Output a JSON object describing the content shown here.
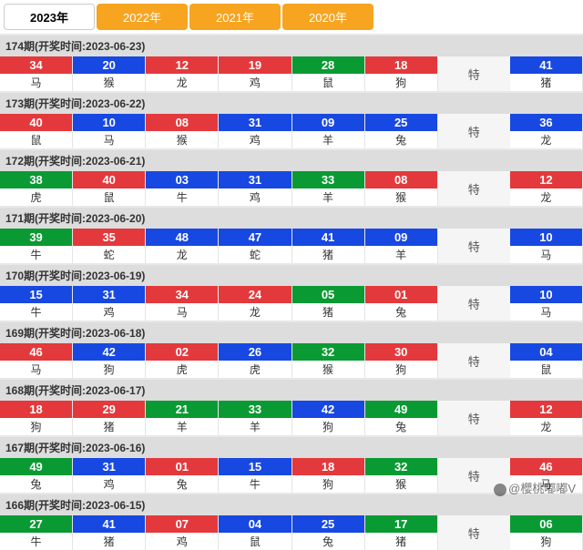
{
  "colors": {
    "red": "#e4393c",
    "blue": "#1848e2",
    "green": "#0a9a33"
  },
  "tabs": [
    {
      "label": "2023年",
      "active": true
    },
    {
      "label": "2022年",
      "active": false
    },
    {
      "label": "2021年",
      "active": false
    },
    {
      "label": "2020年",
      "active": false
    }
  ],
  "special_label": "特",
  "watermark": "@櫻桃嘟嘟V",
  "periods": [
    {
      "title": "174期(开奖时间:2023-06-23)",
      "balls": [
        {
          "n": "34",
          "z": "马",
          "c": "red"
        },
        {
          "n": "20",
          "z": "猴",
          "c": "blue"
        },
        {
          "n": "12",
          "z": "龙",
          "c": "red"
        },
        {
          "n": "19",
          "z": "鸡",
          "c": "red"
        },
        {
          "n": "28",
          "z": "鼠",
          "c": "green"
        },
        {
          "n": "18",
          "z": "狗",
          "c": "red"
        }
      ],
      "special": {
        "n": "41",
        "z": "猪",
        "c": "blue"
      }
    },
    {
      "title": "173期(开奖时间:2023-06-22)",
      "balls": [
        {
          "n": "40",
          "z": "鼠",
          "c": "red"
        },
        {
          "n": "10",
          "z": "马",
          "c": "blue"
        },
        {
          "n": "08",
          "z": "猴",
          "c": "red"
        },
        {
          "n": "31",
          "z": "鸡",
          "c": "blue"
        },
        {
          "n": "09",
          "z": "羊",
          "c": "blue"
        },
        {
          "n": "25",
          "z": "兔",
          "c": "blue"
        }
      ],
      "special": {
        "n": "36",
        "z": "龙",
        "c": "blue"
      }
    },
    {
      "title": "172期(开奖时间:2023-06-21)",
      "balls": [
        {
          "n": "38",
          "z": "虎",
          "c": "green"
        },
        {
          "n": "40",
          "z": "鼠",
          "c": "red"
        },
        {
          "n": "03",
          "z": "牛",
          "c": "blue"
        },
        {
          "n": "31",
          "z": "鸡",
          "c": "blue"
        },
        {
          "n": "33",
          "z": "羊",
          "c": "green"
        },
        {
          "n": "08",
          "z": "猴",
          "c": "red"
        }
      ],
      "special": {
        "n": "12",
        "z": "龙",
        "c": "red"
      }
    },
    {
      "title": "171期(开奖时间:2023-06-20)",
      "balls": [
        {
          "n": "39",
          "z": "牛",
          "c": "green"
        },
        {
          "n": "35",
          "z": "蛇",
          "c": "red"
        },
        {
          "n": "48",
          "z": "龙",
          "c": "blue"
        },
        {
          "n": "47",
          "z": "蛇",
          "c": "blue"
        },
        {
          "n": "41",
          "z": "猪",
          "c": "blue"
        },
        {
          "n": "09",
          "z": "羊",
          "c": "blue"
        }
      ],
      "special": {
        "n": "10",
        "z": "马",
        "c": "blue"
      }
    },
    {
      "title": "170期(开奖时间:2023-06-19)",
      "balls": [
        {
          "n": "15",
          "z": "牛",
          "c": "blue"
        },
        {
          "n": "31",
          "z": "鸡",
          "c": "blue"
        },
        {
          "n": "34",
          "z": "马",
          "c": "red"
        },
        {
          "n": "24",
          "z": "龙",
          "c": "red"
        },
        {
          "n": "05",
          "z": "猪",
          "c": "green"
        },
        {
          "n": "01",
          "z": "兔",
          "c": "red"
        }
      ],
      "special": {
        "n": "10",
        "z": "马",
        "c": "blue"
      }
    },
    {
      "title": "169期(开奖时间:2023-06-18)",
      "balls": [
        {
          "n": "46",
          "z": "马",
          "c": "red"
        },
        {
          "n": "42",
          "z": "狗",
          "c": "blue"
        },
        {
          "n": "02",
          "z": "虎",
          "c": "red"
        },
        {
          "n": "26",
          "z": "虎",
          "c": "blue"
        },
        {
          "n": "32",
          "z": "猴",
          "c": "green"
        },
        {
          "n": "30",
          "z": "狗",
          "c": "red"
        }
      ],
      "special": {
        "n": "04",
        "z": "鼠",
        "c": "blue"
      }
    },
    {
      "title": "168期(开奖时间:2023-06-17)",
      "balls": [
        {
          "n": "18",
          "z": "狗",
          "c": "red"
        },
        {
          "n": "29",
          "z": "猪",
          "c": "red"
        },
        {
          "n": "21",
          "z": "羊",
          "c": "green"
        },
        {
          "n": "33",
          "z": "羊",
          "c": "green"
        },
        {
          "n": "42",
          "z": "狗",
          "c": "blue"
        },
        {
          "n": "49",
          "z": "兔",
          "c": "green"
        }
      ],
      "special": {
        "n": "12",
        "z": "龙",
        "c": "red"
      }
    },
    {
      "title": "167期(开奖时间:2023-06-16)",
      "balls": [
        {
          "n": "49",
          "z": "兔",
          "c": "green"
        },
        {
          "n": "31",
          "z": "鸡",
          "c": "blue"
        },
        {
          "n": "01",
          "z": "兔",
          "c": "red"
        },
        {
          "n": "15",
          "z": "牛",
          "c": "blue"
        },
        {
          "n": "18",
          "z": "狗",
          "c": "red"
        },
        {
          "n": "32",
          "z": "猴",
          "c": "green"
        }
      ],
      "special": {
        "n": "46",
        "z": "马",
        "c": "red"
      }
    },
    {
      "title": "166期(开奖时间:2023-06-15)",
      "balls": [
        {
          "n": "27",
          "z": "牛",
          "c": "green"
        },
        {
          "n": "41",
          "z": "猪",
          "c": "blue"
        },
        {
          "n": "07",
          "z": "鸡",
          "c": "red"
        },
        {
          "n": "04",
          "z": "鼠",
          "c": "blue"
        },
        {
          "n": "25",
          "z": "兔",
          "c": "blue"
        },
        {
          "n": "17",
          "z": "猪",
          "c": "green"
        }
      ],
      "special": {
        "n": "06",
        "z": "狗",
        "c": "green"
      }
    }
  ]
}
